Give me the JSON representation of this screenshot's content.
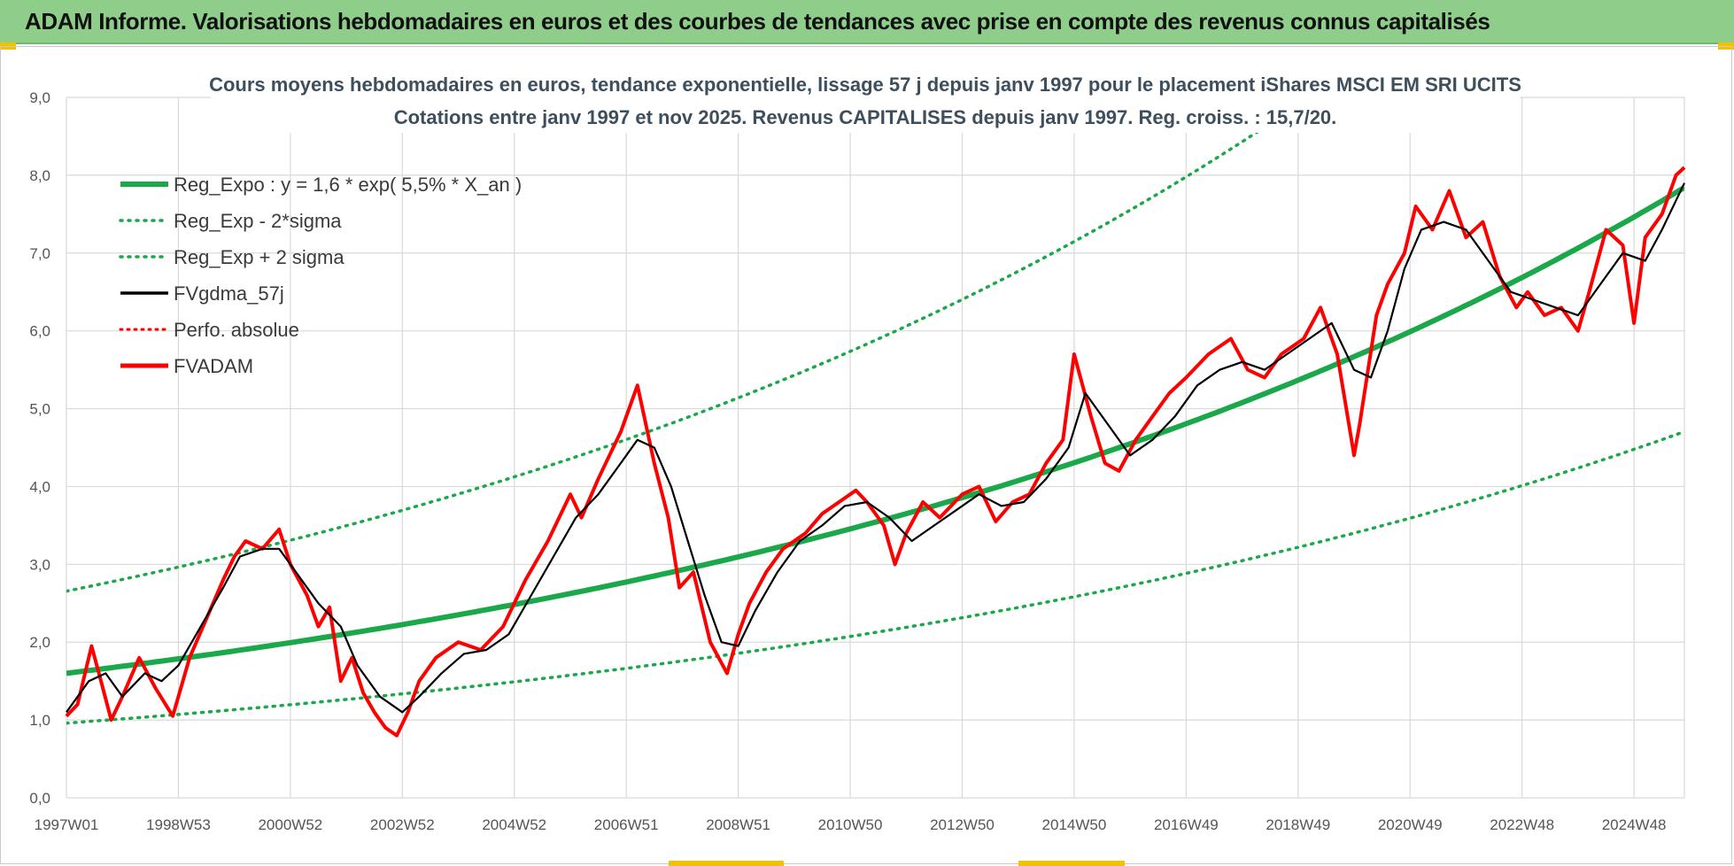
{
  "header": {
    "title": "ADAM Informe. Valorisations hebdomadaires en euros et des courbes de tendances avec prise en compte des revenus connus capitalisés"
  },
  "colors": {
    "banner": "#8fce8a",
    "reg_green": "#1aa84a",
    "real_red": "#ff0000",
    "smooth_black": "#000000",
    "grid": "#d9d9d9"
  },
  "chart_data": {
    "type": "line",
    "title_lines": [
      "Cours moyens hebdomadaires en euros, tendance exponentielle, lissage 57 j depuis janv 1997 pour le placement iShares MSCI EM SRI UCITS",
      "Cotations entre janv 1997 et nov 2025. Revenus CAPITALISES depuis janv 1997. Reg. croiss. : 15,7/20."
    ],
    "ylim": [
      0,
      9
    ],
    "y_ticks": [
      "0,0",
      "1,0",
      "2,0",
      "3,0",
      "4,0",
      "5,0",
      "6,0",
      "7,0",
      "8,0",
      "9,0"
    ],
    "xlim": [
      1997.0,
      2025.9
    ],
    "x_ticks": [
      {
        "label": "1997W01",
        "x": 1997.0
      },
      {
        "label": "1998W53",
        "x": 1999.0
      },
      {
        "label": "2000W52",
        "x": 2001.0
      },
      {
        "label": "2002W52",
        "x": 2003.0
      },
      {
        "label": "2004W52",
        "x": 2005.0
      },
      {
        "label": "2006W51",
        "x": 2007.0
      },
      {
        "label": "2008W51",
        "x": 2009.0
      },
      {
        "label": "2010W50",
        "x": 2011.0
      },
      {
        "label": "2012W50",
        "x": 2013.0
      },
      {
        "label": "2014W50",
        "x": 2015.0
      },
      {
        "label": "2016W49",
        "x": 2017.0
      },
      {
        "label": "2018W49",
        "x": 2019.0
      },
      {
        "label": "2020W49",
        "x": 2021.0
      },
      {
        "label": "2022W48",
        "x": 2023.0
      },
      {
        "label": "2024W48",
        "x": 2025.0
      }
    ],
    "legend": {
      "placement": "top-left",
      "entries": [
        {
          "label": "Reg_Expo : y = 1,6 * exp( 5,5% *  X_an )",
          "style": "solid-green"
        },
        {
          "label": "Reg_Exp - 2*sigma",
          "style": "dotted-green"
        },
        {
          "label": "Reg_Exp + 2 sigma",
          "style": "dotted-green"
        },
        {
          "label": "FVgdma_57j",
          "style": "solid-black"
        },
        {
          "label": "Perfo. absolue",
          "style": "dotted-red"
        },
        {
          "label": "FVADAM",
          "style": "solid-red"
        }
      ]
    },
    "regression": {
      "a": 1.6,
      "rate": 0.055,
      "sigma_lower_factor": 0.6,
      "sigma_upper_factor": 1.66
    },
    "series": [
      {
        "name": "FVADAM",
        "x": [
          1997.0,
          1997.2,
          1997.45,
          1997.6,
          1997.8,
          1998.0,
          1998.3,
          1998.6,
          1998.9,
          1999.2,
          1999.5,
          1999.8,
          2000.0,
          2000.2,
          2000.5,
          2000.8,
          2001.0,
          2001.3,
          2001.5,
          2001.7,
          2001.9,
          2002.1,
          2002.3,
          2002.5,
          2002.7,
          2002.9,
          2003.1,
          2003.3,
          2003.6,
          2004.0,
          2004.4,
          2004.8,
          2005.2,
          2005.6,
          2006.0,
          2006.2,
          2006.5,
          2006.7,
          2006.9,
          2007.2,
          2007.5,
          2007.75,
          2007.95,
          2008.2,
          2008.5,
          2008.8,
          2009.0,
          2009.2,
          2009.5,
          2009.8,
          2010.2,
          2010.5,
          2010.8,
          2011.1,
          2011.3,
          2011.6,
          2011.8,
          2012.0,
          2012.3,
          2012.6,
          2013.0,
          2013.3,
          2013.6,
          2013.9,
          2014.2,
          2014.5,
          2014.8,
          2015.0,
          2015.3,
          2015.55,
          2015.8,
          2016.1,
          2016.4,
          2016.7,
          2017.0,
          2017.4,
          2017.8,
          2018.1,
          2018.4,
          2018.7,
          2019.1,
          2019.4,
          2019.7,
          2020.0,
          2020.1,
          2020.25,
          2020.4,
          2020.6,
          2020.9,
          2021.1,
          2021.4,
          2021.7,
          2022.0,
          2022.3,
          2022.6,
          2022.9,
          2023.1,
          2023.4,
          2023.7,
          2024.0,
          2024.2,
          2024.5,
          2024.8,
          2025.0,
          2025.2,
          2025.5,
          2025.75,
          2025.9
        ],
        "values": [
          1.05,
          1.2,
          1.95,
          1.55,
          1.0,
          1.3,
          1.8,
          1.4,
          1.05,
          1.8,
          2.3,
          2.8,
          3.1,
          3.3,
          3.2,
          3.45,
          3.0,
          2.6,
          2.2,
          2.45,
          1.5,
          1.8,
          1.35,
          1.1,
          0.9,
          0.8,
          1.1,
          1.5,
          1.8,
          2.0,
          1.9,
          2.2,
          2.8,
          3.3,
          3.9,
          3.6,
          4.1,
          4.4,
          4.7,
          5.3,
          4.3,
          3.6,
          2.7,
          2.9,
          2.0,
          1.6,
          2.1,
          2.5,
          2.9,
          3.2,
          3.4,
          3.65,
          3.8,
          3.95,
          3.8,
          3.5,
          3.0,
          3.4,
          3.8,
          3.6,
          3.9,
          4.0,
          3.55,
          3.8,
          3.9,
          4.3,
          4.6,
          5.7,
          4.9,
          4.3,
          4.2,
          4.6,
          4.9,
          5.2,
          5.4,
          5.7,
          5.9,
          5.5,
          5.4,
          5.7,
          5.9,
          6.3,
          5.7,
          4.4,
          4.8,
          5.5,
          6.2,
          6.6,
          7.0,
          7.6,
          7.3,
          7.8,
          7.2,
          7.4,
          6.7,
          6.3,
          6.5,
          6.2,
          6.3,
          6.0,
          6.5,
          7.3,
          7.1,
          6.1,
          7.2,
          7.5,
          8.0,
          8.1
        ]
      },
      {
        "name": "FVgdma_57j",
        "x": [
          1997.0,
          1997.4,
          1997.7,
          1998.0,
          1998.4,
          1998.7,
          1999.0,
          1999.4,
          1999.8,
          2000.1,
          2000.5,
          2000.8,
          2001.1,
          2001.5,
          2001.9,
          2002.2,
          2002.6,
          2003.0,
          2003.3,
          2003.7,
          2004.1,
          2004.5,
          2004.9,
          2005.3,
          2005.7,
          2006.1,
          2006.5,
          2006.9,
          2007.2,
          2007.5,
          2007.8,
          2008.1,
          2008.4,
          2008.7,
          2009.0,
          2009.3,
          2009.7,
          2010.1,
          2010.5,
          2010.9,
          2011.3,
          2011.7,
          2012.1,
          2012.5,
          2012.9,
          2013.3,
          2013.7,
          2014.1,
          2014.5,
          2014.9,
          2015.2,
          2015.6,
          2016.0,
          2016.4,
          2016.8,
          2017.2,
          2017.6,
          2018.0,
          2018.4,
          2018.8,
          2019.2,
          2019.6,
          2020.0,
          2020.3,
          2020.6,
          2020.9,
          2021.2,
          2021.6,
          2022.0,
          2022.4,
          2022.8,
          2023.2,
          2023.6,
          2024.0,
          2024.4,
          2024.8,
          2025.2,
          2025.5,
          2025.9
        ],
        "values": [
          1.1,
          1.5,
          1.6,
          1.3,
          1.6,
          1.5,
          1.7,
          2.2,
          2.7,
          3.1,
          3.2,
          3.2,
          2.9,
          2.5,
          2.2,
          1.7,
          1.3,
          1.1,
          1.3,
          1.6,
          1.85,
          1.9,
          2.1,
          2.6,
          3.1,
          3.6,
          3.9,
          4.3,
          4.6,
          4.5,
          4.0,
          3.3,
          2.6,
          2.0,
          1.95,
          2.4,
          2.9,
          3.3,
          3.5,
          3.75,
          3.8,
          3.6,
          3.3,
          3.5,
          3.7,
          3.9,
          3.75,
          3.8,
          4.1,
          4.5,
          5.2,
          4.8,
          4.4,
          4.6,
          4.9,
          5.3,
          5.5,
          5.6,
          5.5,
          5.7,
          5.9,
          6.1,
          5.5,
          5.4,
          6.0,
          6.8,
          7.3,
          7.4,
          7.3,
          6.9,
          6.5,
          6.4,
          6.3,
          6.2,
          6.6,
          7.0,
          6.9,
          7.3,
          7.9
        ]
      }
    ]
  }
}
